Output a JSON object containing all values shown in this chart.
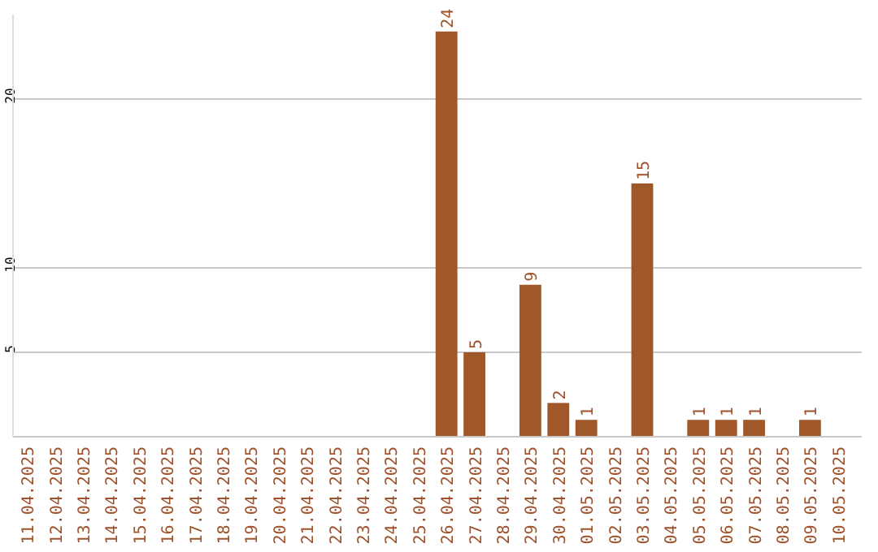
{
  "chart_data": {
    "type": "bar",
    "categories": [
      "11.04.2025",
      "12.04.2025",
      "13.04.2025",
      "14.04.2025",
      "15.04.2025",
      "16.04.2025",
      "17.04.2025",
      "18.04.2025",
      "19.04.2025",
      "20.04.2025",
      "21.04.2025",
      "22.04.2025",
      "23.04.2025",
      "24.04.2025",
      "25.04.2025",
      "26.04.2025",
      "27.04.2025",
      "28.04.2025",
      "29.04.2025",
      "30.04.2025",
      "01.05.2025",
      "02.05.2025",
      "03.05.2025",
      "04.05.2025",
      "05.05.2025",
      "06.05.2025",
      "07.05.2025",
      "08.05.2025",
      "09.05.2025",
      "10.05.2025"
    ],
    "values": [
      0,
      0,
      0,
      0,
      0,
      0,
      0,
      0,
      0,
      0,
      0,
      0,
      0,
      0,
      0,
      24,
      5,
      0,
      9,
      2,
      1,
      0,
      15,
      0,
      1,
      1,
      1,
      0,
      1,
      0
    ],
    "value_labels": [
      null,
      null,
      null,
      null,
      null,
      null,
      null,
      null,
      null,
      null,
      null,
      null,
      null,
      null,
      null,
      "24",
      "5",
      null,
      "9",
      "2",
      "1",
      null,
      "15",
      null,
      "1",
      "1",
      "1",
      null,
      "1",
      null
    ],
    "color": "#a0582a",
    "ylim": [
      0,
      25
    ],
    "yticks": [
      5,
      10,
      20
    ],
    "grid": "y"
  }
}
